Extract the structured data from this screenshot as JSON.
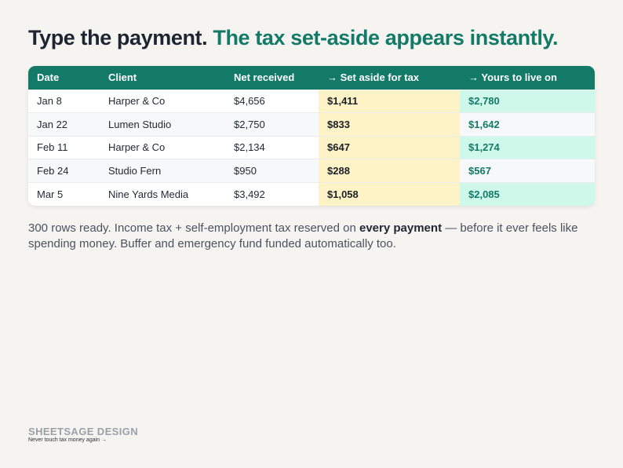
{
  "headline": {
    "part1": "Type the payment.",
    "part2": "The tax set-aside appears instantly."
  },
  "table": {
    "headers": [
      "Date",
      "Client",
      "Net received",
      "→ Set aside for tax",
      "→ Yours to live on"
    ],
    "rows": [
      {
        "date": "Jan 8",
        "client": "Harper & Co",
        "net": "$4,656",
        "tax": "$1,411",
        "live": "$2,780"
      },
      {
        "date": "Jan 22",
        "client": "Lumen Studio",
        "net": "$2,750",
        "tax": "$833",
        "live": "$1,642"
      },
      {
        "date": "Feb 11",
        "client": "Harper & Co",
        "net": "$2,134",
        "tax": "$647",
        "live": "$1,274"
      },
      {
        "date": "Feb 24",
        "client": "Studio Fern",
        "net": "$950",
        "tax": "$288",
        "live": "$567"
      },
      {
        "date": "Mar 5",
        "client": "Nine Yards Media",
        "net": "$3,492",
        "tax": "$1,058",
        "live": "$2,085"
      }
    ]
  },
  "body": {
    "before": "300 rows ready. Income tax + self-employment tax reserved on ",
    "emphasis": "every payment",
    "after": " — before it ever feels like spending money. Buffer and emergency fund funded automatically too."
  },
  "footer": {
    "brand": "SHEETSAGE DESIGN",
    "tagline": "Never touch tax money again →"
  },
  "colors": {
    "accent": "#137a68",
    "tax_highlight": "#fdf3c6",
    "live_highlight": "#cef8ea",
    "background": "#f6f4f0"
  }
}
